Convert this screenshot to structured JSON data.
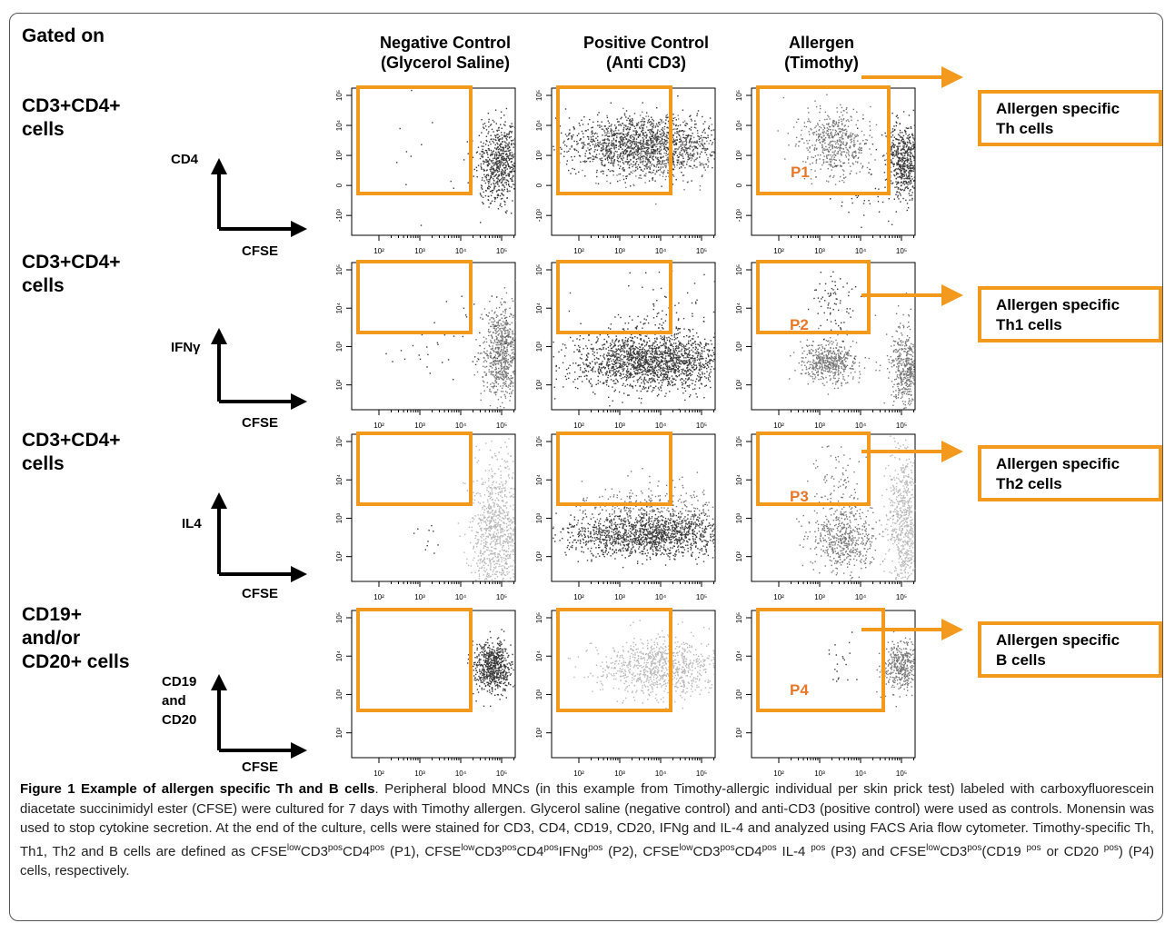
{
  "figure": {
    "gated_on": "Gated on",
    "columns": [
      {
        "line1": "Negative Control",
        "line2": "(Glycerol Saline)"
      },
      {
        "line1": "Positive Control",
        "line2": "(Anti CD3)"
      },
      {
        "line1": "Allergen",
        "line2": "(Timothy)"
      }
    ],
    "rows": [
      {
        "gate_l1": "CD3+CD4+",
        "gate_l2": "cells",
        "gate_l3": "",
        "y_axis": "CD4",
        "y_axis_l2": "",
        "y_axis_l3": "",
        "x_axis": "CFSE",
        "population": "P1",
        "result_l1": "Allergen specific",
        "result_l2": "Th cells"
      },
      {
        "gate_l1": "CD3+CD4+",
        "gate_l2": "cells",
        "gate_l3": "",
        "y_axis": "IFNγ",
        "y_axis_l2": "",
        "y_axis_l3": "",
        "x_axis": "CFSE",
        "population": "P2",
        "result_l1": "Allergen specific",
        "result_l2": "Th1 cells"
      },
      {
        "gate_l1": "CD3+CD4+",
        "gate_l2": "cells",
        "gate_l3": "",
        "y_axis": "IL4",
        "y_axis_l2": "",
        "y_axis_l3": "",
        "x_axis": "CFSE",
        "population": "P3",
        "result_l1": "Allergen specific",
        "result_l2": "Th2 cells"
      },
      {
        "gate_l1": "CD19+",
        "gate_l2": "and/or",
        "gate_l3": "CD20+ cells",
        "y_axis": "CD19",
        "y_axis_l2": "and",
        "y_axis_l3": "CD20",
        "x_axis": "CFSE",
        "population": "P4",
        "result_l1": "Allergen specific",
        "result_l2": "B cells"
      }
    ],
    "tick_x": [
      "10²",
      "10³",
      "10⁴",
      "10⁵"
    ],
    "tick_y_row1": [
      "10⁵",
      "10⁴",
      "10³",
      "0",
      "-10³"
    ],
    "tick_y_row2": [
      "10⁵",
      "10⁴",
      "10³",
      "10²"
    ]
  },
  "caption": {
    "title": "Figure 1 Example of allergen specific Th and B cells",
    "text_a": ". Peripheral blood MNCs (in this example from Timothy-allergic individual per skin prick test) labeled with carboxyfluorescein diacetate succinimidyl ester (CFSE) were cultured for 7 days with Timothy allergen. Glycerol saline (negative control) and anti-CD3 (positive control) were used as controls. Monensin was used to stop cytokine secretion. At the end of the culture, cells were stained for CD3, CD4, CD19, CD20, IFNg and IL-4 and analyzed using FACS Aria flow cytometer. Timothy-specific Th, Th1, Th2 and B cells are defined as ",
    "cfse": "CFSE",
    "low": "low",
    "cd3": "CD3",
    "pos": "pos",
    "cd4": "CD4",
    "ifng": "IFNg",
    "il4": " IL-4 ",
    "p1": " (P1), ",
    "p2": " (P2), ",
    "p3": " (P3) and ",
    "p4a": "(CD19 ",
    "p4b": " or CD20 ",
    "p4c": ") (P4) cells, respectively."
  },
  "colors": {
    "gate": "#f39a1e",
    "label": "#e7782a",
    "dots_dark": "#3a3a3a",
    "dots_mid": "#777777",
    "dots_light": "#b8b8b8"
  }
}
